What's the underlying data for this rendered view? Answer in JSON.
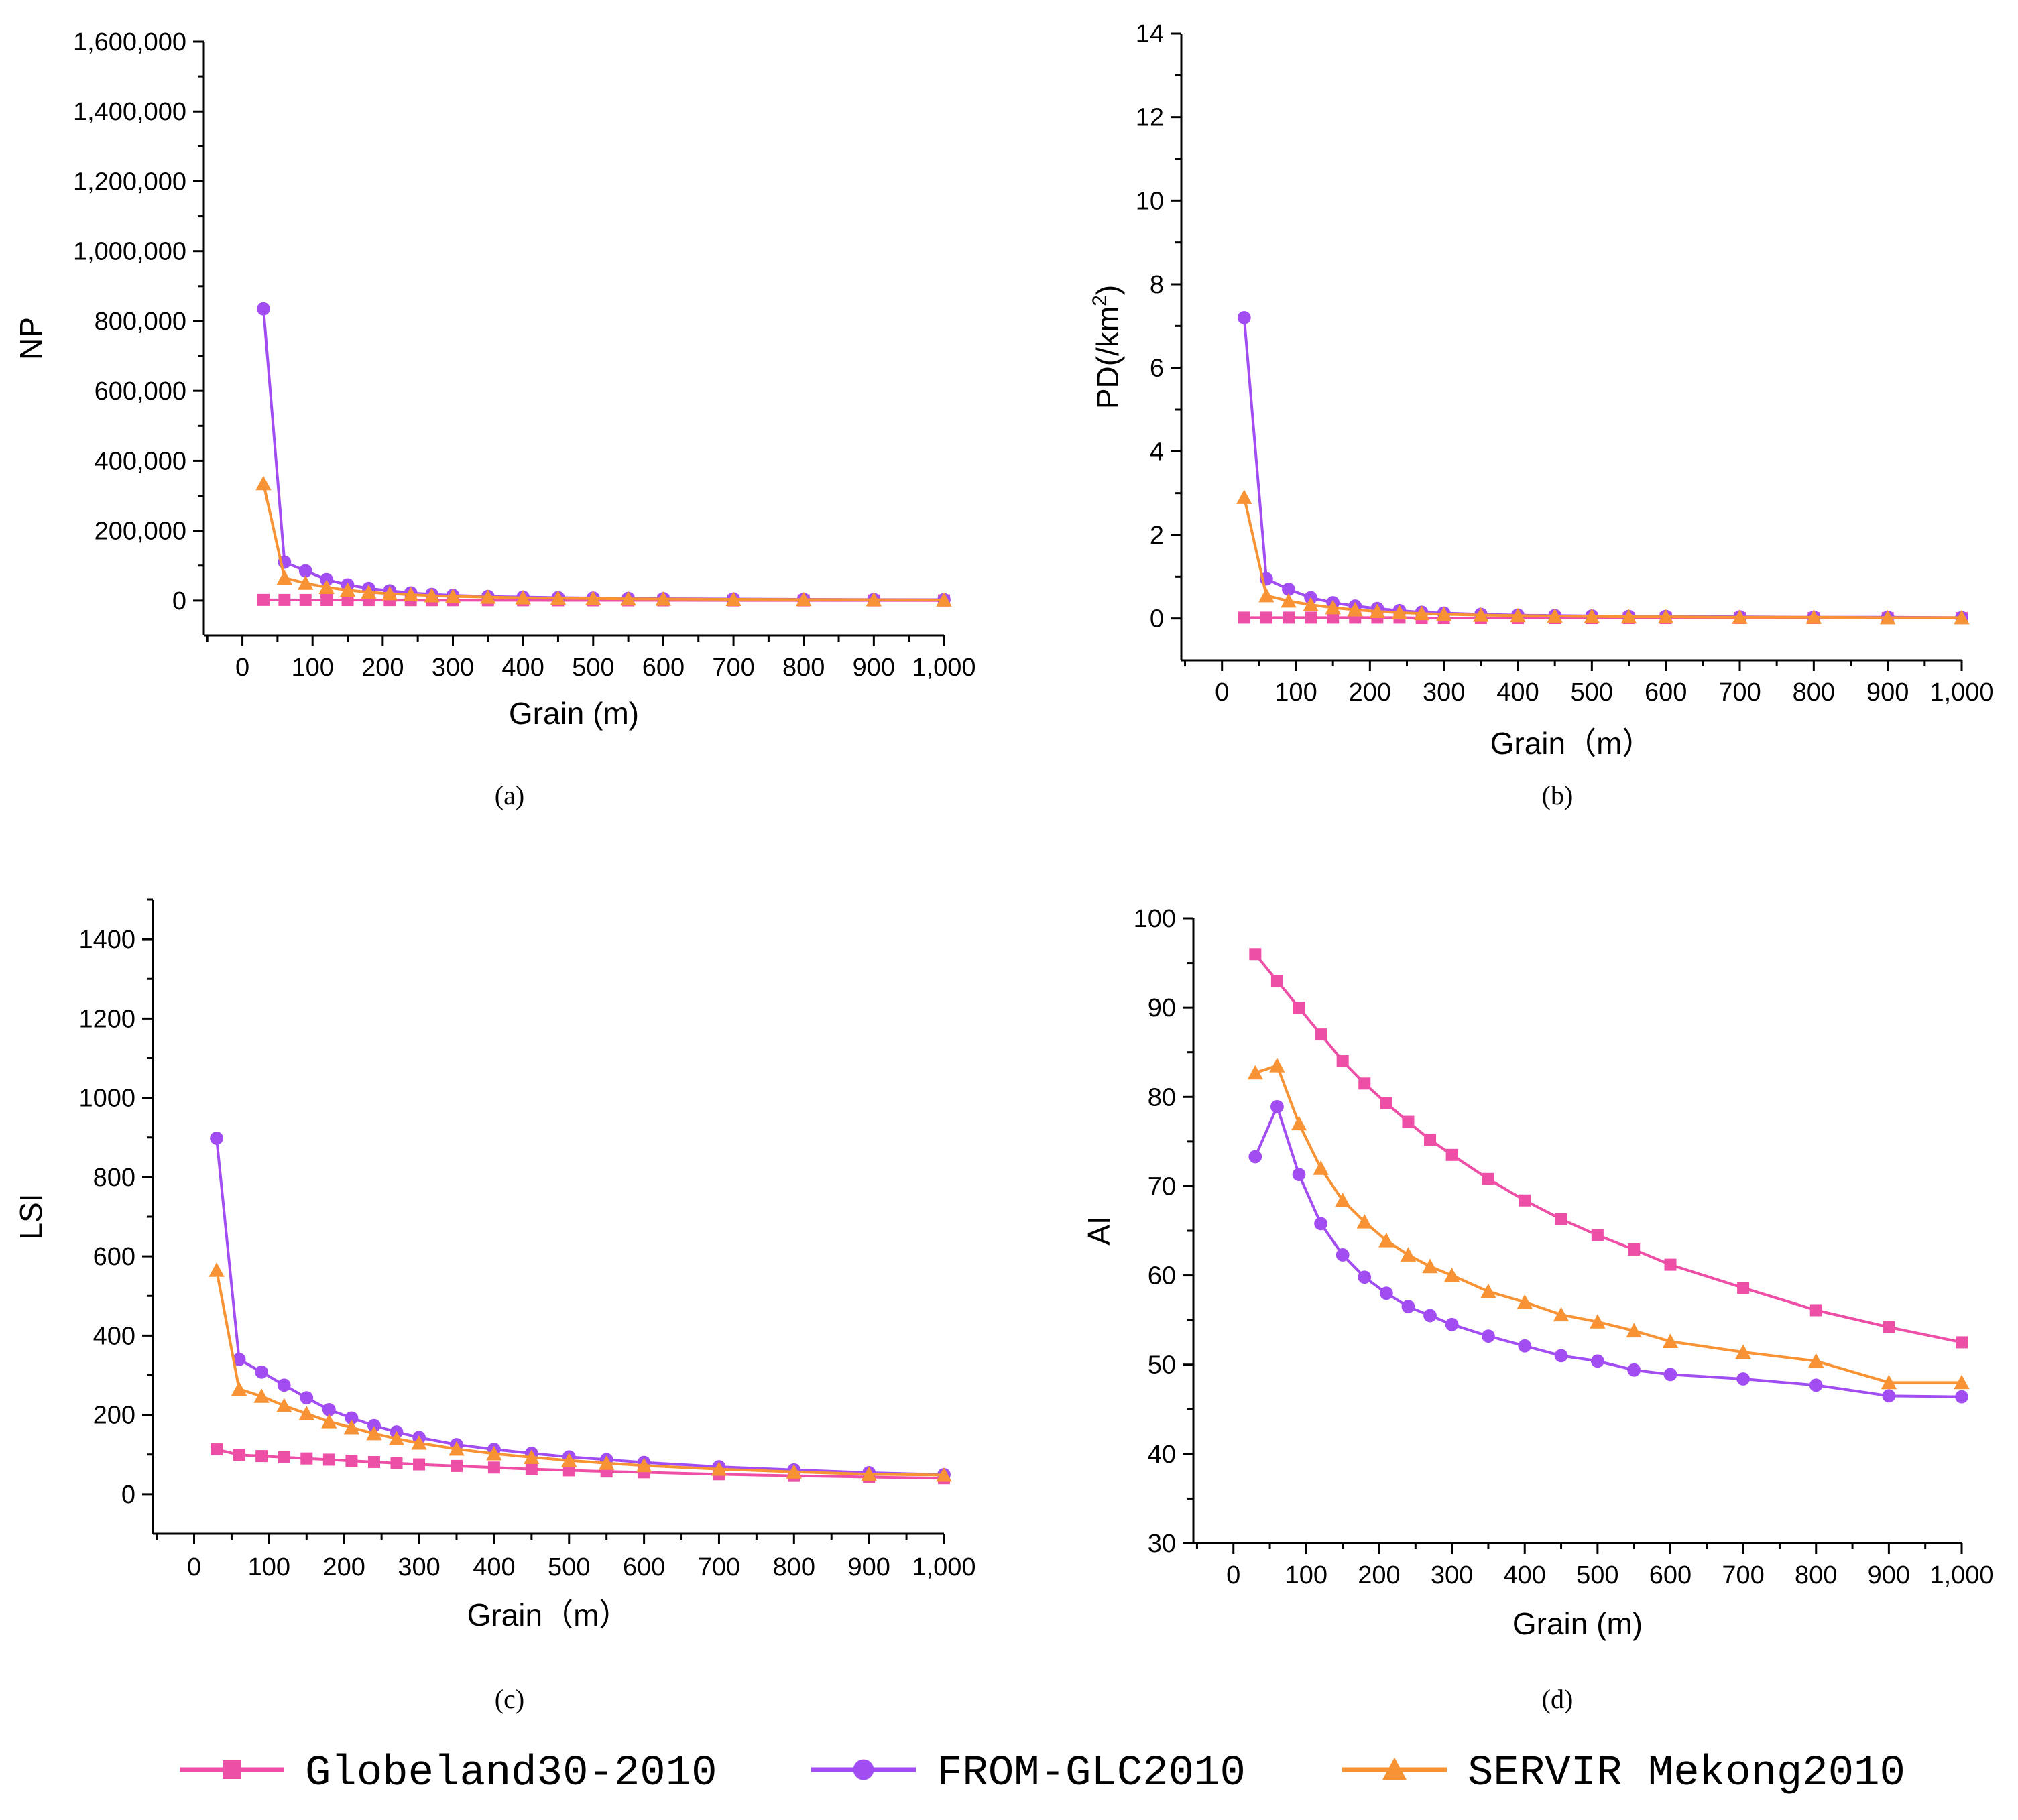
{
  "chart_data": [
    {
      "type": "line",
      "panel": "(a)",
      "xlabel": "Grain (m)",
      "ylabel": "NP",
      "ylabel_sup": "",
      "ylabel_tail": "",
      "xlim": [
        -55,
        1000
      ],
      "ylim": [
        -100000,
        1600000
      ],
      "xticks": [
        0,
        100,
        200,
        300,
        400,
        500,
        600,
        700,
        800,
        900,
        1000
      ],
      "xtick_labels": [
        "0",
        "100",
        "200",
        "300",
        "400",
        "500",
        "600",
        "700",
        "800",
        "900",
        "1,000"
      ],
      "yticks": [
        0,
        200000,
        400000,
        600000,
        800000,
        1000000,
        1200000,
        1400000,
        1600000
      ],
      "ytick_labels": [
        "0",
        "200,000",
        "400,000",
        "600,000",
        "800,000",
        "1,000,000",
        "1,200,000",
        "1,400,000",
        "1,600,000"
      ],
      "x": [
        30,
        60,
        90,
        120,
        150,
        180,
        210,
        240,
        270,
        300,
        350,
        400,
        450,
        500,
        550,
        600,
        700,
        800,
        900,
        1000
      ],
      "series": [
        {
          "name": "Globeland30-2010",
          "values": [
            2000,
            1900,
            1800,
            1700,
            1600,
            1500,
            1400,
            1300,
            1200,
            1100,
            1000,
            900,
            800,
            750,
            700,
            650,
            550,
            450,
            400,
            350
          ]
        },
        {
          "name": "FROM-GLC2010",
          "values": [
            835000,
            110000,
            85000,
            60000,
            45000,
            35000,
            28000,
            22000,
            18000,
            15000,
            12000,
            10000,
            8500,
            7500,
            6500,
            5500,
            4500,
            3500,
            3000,
            2500
          ]
        },
        {
          "name": "SERVIR Mekong2010",
          "values": [
            335000,
            65000,
            50000,
            38000,
            30000,
            24000,
            20000,
            17000,
            14000,
            12000,
            10000,
            8000,
            7000,
            6000,
            5000,
            4500,
            3500,
            3000,
            2500,
            2000
          ]
        }
      ]
    },
    {
      "type": "line",
      "panel": "(b)",
      "xlabel": "Grain（m）",
      "ylabel": "PD(/km",
      "ylabel_sup": "2",
      "ylabel_tail": ")",
      "xlim": [
        -55,
        1000
      ],
      "ylim": [
        -1,
        14
      ],
      "xticks": [
        0,
        100,
        200,
        300,
        400,
        500,
        600,
        700,
        800,
        900,
        1000
      ],
      "xtick_labels": [
        "0",
        "100",
        "200",
        "300",
        "400",
        "500",
        "600",
        "700",
        "800",
        "900",
        "1,000"
      ],
      "yticks": [
        0,
        2,
        4,
        6,
        8,
        10,
        12,
        14
      ],
      "ytick_labels": [
        "0",
        "2",
        "4",
        "6",
        "8",
        "10",
        "12",
        "14"
      ],
      "x": [
        30,
        60,
        90,
        120,
        150,
        180,
        210,
        240,
        270,
        300,
        350,
        400,
        450,
        500,
        550,
        600,
        700,
        800,
        900,
        1000
      ],
      "series": [
        {
          "name": "Globeland30-2010",
          "values": [
            0.02,
            0.02,
            0.02,
            0.02,
            0.02,
            0.02,
            0.02,
            0.02,
            0.01,
            0.01,
            0.01,
            0.01,
            0.01,
            0.01,
            0.01,
            0.01,
            0.01,
            0.01,
            0.01,
            0.01
          ]
        },
        {
          "name": "FROM-GLC2010",
          "values": [
            7.2,
            0.95,
            0.7,
            0.5,
            0.38,
            0.3,
            0.24,
            0.19,
            0.15,
            0.13,
            0.1,
            0.08,
            0.07,
            0.06,
            0.05,
            0.05,
            0.04,
            0.03,
            0.03,
            0.02
          ]
        },
        {
          "name": "SERVIR Mekong2010",
          "values": [
            2.9,
            0.55,
            0.42,
            0.33,
            0.26,
            0.21,
            0.17,
            0.14,
            0.12,
            0.1,
            0.08,
            0.07,
            0.06,
            0.05,
            0.04,
            0.04,
            0.03,
            0.03,
            0.02,
            0.02
          ]
        }
      ]
    },
    {
      "type": "line",
      "panel": "(c)",
      "xlabel": "Grain（m）",
      "ylabel": "LSI",
      "ylabel_sup": "",
      "ylabel_tail": "",
      "xlim": [
        -55,
        1000
      ],
      "ylim": [
        -100,
        1500
      ],
      "xticks": [
        0,
        100,
        200,
        300,
        400,
        500,
        600,
        700,
        800,
        900,
        1000
      ],
      "xtick_labels": [
        "0",
        "100",
        "200",
        "300",
        "400",
        "500",
        "600",
        "700",
        "800",
        "900",
        "1,000"
      ],
      "yticks": [
        0,
        200,
        400,
        600,
        800,
        1000,
        1200,
        1400
      ],
      "ytick_labels": [
        "0",
        "200",
        "400",
        "600",
        "800",
        "1000",
        "1200",
        "1400"
      ],
      "x": [
        30,
        60,
        90,
        120,
        150,
        180,
        210,
        240,
        270,
        300,
        350,
        400,
        450,
        500,
        550,
        600,
        700,
        800,
        900,
        1000
      ],
      "series": [
        {
          "name": "Globeland30-2010",
          "values": [
            113,
            99,
            96,
            93,
            90,
            87,
            84,
            81,
            78,
            75,
            71,
            67,
            63,
            60,
            57,
            55,
            50,
            46,
            43,
            40
          ]
        },
        {
          "name": "FROM-GLC2010",
          "values": [
            898,
            340,
            308,
            275,
            243,
            213,
            192,
            173,
            157,
            143,
            125,
            113,
            103,
            94,
            87,
            80,
            69,
            61,
            54,
            49
          ]
        },
        {
          "name": "SERVIR Mekong2010",
          "values": [
            565,
            265,
            247,
            223,
            203,
            183,
            168,
            153,
            140,
            129,
            114,
            102,
            93,
            85,
            78,
            72,
            63,
            56,
            50,
            48
          ]
        }
      ]
    },
    {
      "type": "line",
      "panel": "(d)",
      "xlabel": "Grain (m)",
      "ylabel": "AI",
      "ylabel_sup": "",
      "ylabel_tail": "",
      "xlim": [
        -55,
        1000
      ],
      "ylim": [
        30,
        100
      ],
      "xticks": [
        0,
        100,
        200,
        300,
        400,
        500,
        600,
        700,
        800,
        900,
        1000
      ],
      "xtick_labels": [
        "0",
        "100",
        "200",
        "300",
        "400",
        "500",
        "600",
        "700",
        "800",
        "900",
        "1,000"
      ],
      "yticks": [
        30,
        40,
        50,
        60,
        70,
        80,
        90,
        100
      ],
      "ytick_labels": [
        "30",
        "40",
        "50",
        "60",
        "70",
        "80",
        "90",
        "100"
      ],
      "x": [
        30,
        60,
        90,
        120,
        150,
        180,
        210,
        240,
        270,
        300,
        350,
        400,
        450,
        500,
        550,
        600,
        700,
        800,
        900,
        1000
      ],
      "series": [
        {
          "name": "Globeland30-2010",
          "values": [
            96,
            93,
            90,
            87,
            84,
            81.5,
            79.3,
            77.2,
            75.2,
            73.5,
            70.8,
            68.4,
            66.3,
            64.5,
            62.9,
            61.2,
            58.6,
            56.1,
            54.2,
            52.5
          ]
        },
        {
          "name": "FROM-GLC2010",
          "values": [
            73.3,
            78.9,
            71.3,
            65.8,
            62.3,
            59.8,
            58,
            56.5,
            55.5,
            54.5,
            53.2,
            52.1,
            51,
            50.4,
            49.4,
            48.9,
            48.4,
            47.7,
            46.5,
            46.4
          ]
        },
        {
          "name": "SERVIR Mekong2010",
          "values": [
            82.7,
            83.5,
            77,
            72,
            68.4,
            66,
            63.9,
            62.3,
            61,
            60,
            58.2,
            57,
            55.6,
            54.8,
            53.8,
            52.6,
            51.4,
            50.4,
            48,
            48
          ]
        }
      ]
    }
  ],
  "legend": [
    {
      "name": "Globeland30-2010",
      "color": "#ee4fa6",
      "marker": "square"
    },
    {
      "name": "FROM-GLC2010",
      "color": "#a24df2",
      "marker": "circle"
    },
    {
      "name": "SERVIR Mekong2010",
      "color": "#f79334",
      "marker": "triangle"
    }
  ],
  "series_colors": {
    "Globeland30-2010": "#ee4fa6",
    "FROM-GLC2010": "#a24df2",
    "SERVIR Mekong2010": "#f79334"
  }
}
